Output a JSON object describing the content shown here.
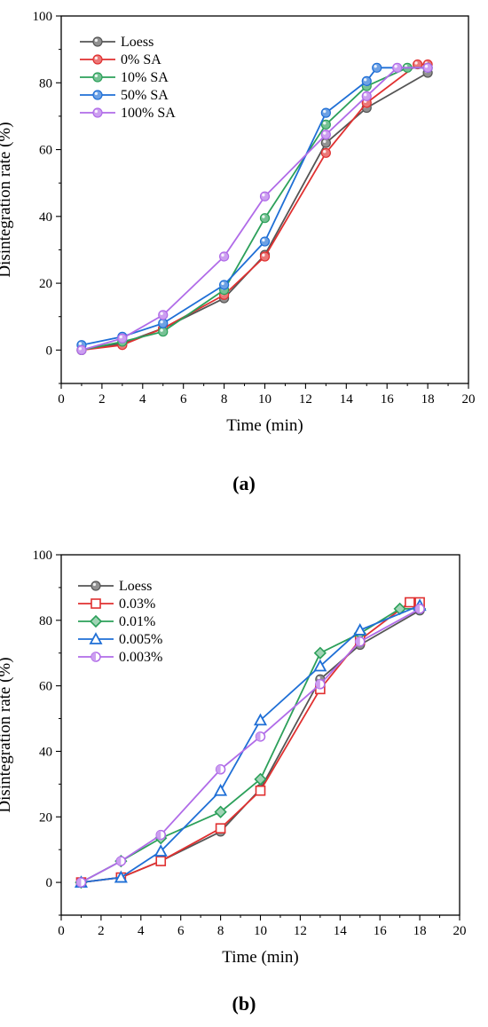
{
  "panels": [
    {
      "caption": "(a)",
      "chart_data": {
        "type": "line",
        "xlabel": "Time (min)",
        "ylabel": "Disintegration rate (%)",
        "xlim": [
          0,
          20
        ],
        "ylim": [
          -10,
          100
        ],
        "xticks": [
          0,
          2,
          4,
          6,
          8,
          10,
          12,
          14,
          16,
          18,
          20
        ],
        "yticks": [
          0,
          20,
          40,
          60,
          80,
          100
        ],
        "grid": false,
        "legend_position": "top-left",
        "series": [
          {
            "name": "Loess",
            "color": "#555555",
            "marker": "circle",
            "x": [
              1,
              3,
              5,
              8,
              10,
              13,
              15,
              18
            ],
            "y": [
              0,
              2,
              6.5,
              15.5,
              28.5,
              62,
              72.5,
              83
            ]
          },
          {
            "name": "0% SA",
            "color": "#e03030",
            "marker": "circle",
            "x": [
              1,
              3,
              5,
              8,
              10,
              13,
              15,
              17.5,
              18
            ],
            "y": [
              0,
              1.5,
              6.5,
              16.5,
              28,
              59,
              74,
              85.5,
              85.5
            ]
          },
          {
            "name": "10% SA",
            "color": "#2ca05a",
            "marker": "circle",
            "x": [
              1,
              3,
              5,
              8,
              10,
              13,
              15,
              17,
              18
            ],
            "y": [
              0,
              2.5,
              5.5,
              18,
              39.5,
              67.5,
              79,
              84.5,
              84.5
            ]
          },
          {
            "name": "50% SA",
            "color": "#1f6fd6",
            "marker": "circle",
            "x": [
              1,
              3,
              5,
              8,
              10,
              13,
              15,
              15.5,
              18
            ],
            "y": [
              1.5,
              4,
              8,
              19.5,
              32.5,
              71,
              80.5,
              84.5,
              84.5
            ]
          },
          {
            "name": "100% SA",
            "color": "#b06be8",
            "marker": "circle",
            "x": [
              1,
              3,
              5,
              8,
              10,
              13,
              15,
              16.5,
              18
            ],
            "y": [
              0,
              3.5,
              10.5,
              28,
              46,
              64.5,
              76,
              84.5,
              84.5
            ]
          }
        ]
      }
    },
    {
      "caption": "(b)",
      "chart_data": {
        "type": "line",
        "xlabel": "Time (min)",
        "ylabel": "Disintegration rate (%)",
        "xlim": [
          0,
          20
        ],
        "ylim": [
          -10,
          100
        ],
        "xticks": [
          0,
          2,
          4,
          6,
          8,
          10,
          12,
          14,
          16,
          18,
          20
        ],
        "yticks": [
          0,
          20,
          40,
          60,
          80,
          100
        ],
        "grid": false,
        "legend_position": "top-left",
        "series": [
          {
            "name": "Loess",
            "color": "#555555",
            "marker": "circle",
            "x": [
              1,
              3,
              5,
              8,
              10,
              13,
              15,
              18
            ],
            "y": [
              0,
              1.5,
              6.5,
              15.5,
              28.5,
              62,
              72.5,
              83
            ]
          },
          {
            "name": "0.03%",
            "color": "#e03030",
            "marker": "square",
            "x": [
              1,
              3,
              5,
              8,
              10,
              13,
              15,
              17.5,
              18
            ],
            "y": [
              0,
              1.5,
              6.5,
              16.5,
              28,
              59,
              74,
              85.5,
              85.5
            ]
          },
          {
            "name": "0.01%",
            "color": "#2ca05a",
            "marker": "diamond",
            "x": [
              1,
              3,
              5,
              8,
              10,
              13,
              15,
              17,
              18
            ],
            "y": [
              0,
              6.5,
              13.5,
              21.5,
              31.5,
              70,
              76,
              83.5,
              83.5
            ]
          },
          {
            "name": "0.005%",
            "color": "#1f6fd6",
            "marker": "triangle",
            "x": [
              1,
              3,
              5,
              8,
              10,
              13,
              15,
              18
            ],
            "y": [
              0,
              1.5,
              9.5,
              28,
              49.5,
              66,
              77,
              84.5
            ]
          },
          {
            "name": "0.003%",
            "color": "#b06be8",
            "marker": "halfcircle",
            "x": [
              1,
              3,
              5,
              8,
              10,
              13,
              15,
              18
            ],
            "y": [
              0,
              6.5,
              14.5,
              34.5,
              44.5,
              60.5,
              73.5,
              83.5
            ]
          }
        ]
      }
    }
  ]
}
